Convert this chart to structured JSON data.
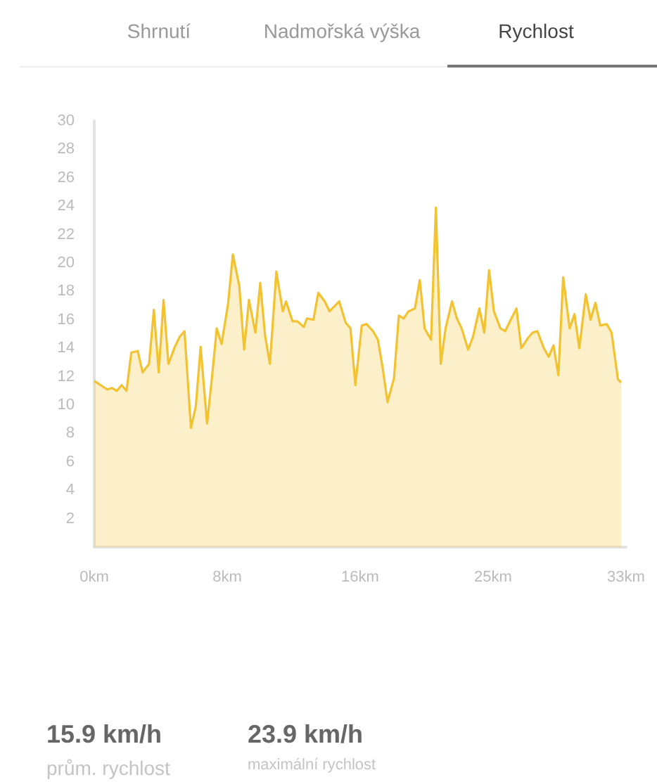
{
  "chart_data": {
    "type": "area",
    "x": [
      0,
      0.4,
      0.8,
      1.1,
      1.4,
      1.7,
      2.0,
      2.3,
      2.7,
      3.0,
      3.4,
      3.7,
      4.0,
      4.3,
      4.6,
      5.0,
      5.3,
      5.6,
      6.0,
      6.3,
      6.6,
      7.0,
      7.3,
      7.6,
      7.9,
      8.3,
      8.6,
      9.0,
      9.3,
      9.6,
      10.0,
      10.3,
      10.6,
      10.9,
      11.3,
      11.7,
      11.9,
      12.3,
      12.6,
      13.0,
      13.2,
      13.6,
      13.9,
      14.3,
      14.6,
      15.2,
      15.6,
      15.9,
      16.2,
      16.6,
      16.9,
      17.3,
      17.6,
      17.9,
      18.2,
      18.6,
      18.9,
      19.2,
      19.5,
      19.9,
      20.2,
      20.5,
      20.9,
      21.2,
      21.5,
      21.8,
      22.2,
      22.5,
      22.8,
      23.2,
      23.5,
      23.9,
      24.2,
      24.5,
      24.8,
      25.2,
      25.5,
      25.8,
      26.2,
      26.5,
      26.9,
      27.2,
      27.5,
      27.9,
      28.2,
      28.5,
      28.8,
      29.1,
      29.5,
      29.8,
      30.1,
      30.5,
      30.8,
      31.1,
      31.4,
      31.8,
      32.1,
      32.5,
      32.7
    ],
    "values": [
      11.7,
      11.4,
      11.1,
      11.2,
      11.0,
      11.4,
      11.0,
      13.7,
      13.8,
      12.3,
      12.9,
      16.7,
      12.3,
      17.4,
      12.9,
      14.1,
      14.8,
      15.2,
      8.4,
      9.9,
      14.1,
      8.7,
      11.9,
      15.4,
      14.3,
      17.1,
      20.6,
      18.4,
      13.9,
      17.4,
      15.1,
      18.6,
      14.9,
      12.9,
      19.4,
      16.6,
      17.3,
      15.9,
      15.9,
      15.5,
      16.1,
      16.0,
      17.9,
      17.3,
      16.6,
      17.3,
      15.8,
      15.4,
      11.4,
      15.6,
      15.7,
      15.2,
      14.6,
      12.6,
      10.2,
      11.9,
      16.3,
      16.1,
      16.6,
      16.8,
      18.8,
      15.4,
      14.6,
      23.9,
      12.9,
      15.4,
      17.3,
      16.1,
      15.4,
      13.9,
      14.8,
      16.8,
      15.1,
      19.5,
      16.6,
      15.4,
      15.2,
      15.9,
      16.8,
      14.0,
      14.7,
      15.1,
      15.2,
      14.0,
      13.4,
      14.2,
      12.1,
      19.0,
      15.4,
      16.4,
      14.0,
      17.8,
      16.0,
      17.2,
      15.6,
      15.7,
      15.1,
      11.8,
      11.6
    ],
    "color": "#f2c230",
    "marker": "none",
    "grid": false,
    "xlim": [
      0,
      33
    ],
    "xticks": [
      {
        "value": 0,
        "label": "0km"
      },
      {
        "value": 8.25,
        "label": "8km"
      },
      {
        "value": 16.5,
        "label": "16km"
      },
      {
        "value": 24.75,
        "label": "25km"
      },
      {
        "value": 33,
        "label": "33km"
      }
    ],
    "ylim": [
      0,
      30
    ],
    "yticks": [
      2,
      4,
      6,
      8,
      10,
      12,
      14,
      16,
      18,
      20,
      22,
      24,
      26,
      28,
      30
    ],
    "annotations": [
      "Shrnutí",
      "Nadmořská výška",
      "Rychlost",
      "15.9 km/h",
      "prům. rychlost",
      "23.9 km/h",
      "maximální rychlost"
    ]
  }
}
